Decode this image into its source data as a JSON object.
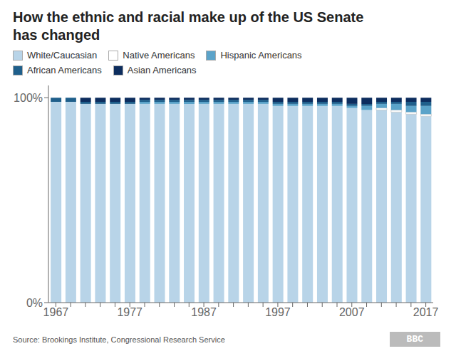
{
  "chart_data": {
    "type": "bar",
    "title": "How the ethnic and racial make up of the US Senate\nhas changed",
    "categories": [
      "1967",
      null,
      null,
      null,
      null,
      "1977",
      null,
      null,
      null,
      null,
      "1987",
      null,
      null,
      null,
      null,
      "1997",
      null,
      null,
      null,
      null,
      "2007",
      null,
      null,
      null,
      null,
      "2017"
    ],
    "series": [
      {
        "name": "White/Caucasian",
        "color": "#b8d4e8",
        "values": [
          98,
          98,
          97,
          97,
          97,
          97,
          97,
          97,
          97,
          97,
          97,
          97,
          97,
          97,
          97,
          96,
          96,
          96,
          96,
          96,
          95,
          94,
          94,
          93,
          92,
          91
        ]
      },
      {
        "name": "Native Americans",
        "color": "#ffffff",
        "values": [
          0,
          0,
          0,
          0,
          0,
          0,
          0,
          0,
          0,
          0,
          0,
          0,
          0,
          0,
          0,
          0,
          0,
          0,
          0,
          0,
          0,
          0,
          1,
          1,
          1,
          1
        ]
      },
      {
        "name": "Hispanic Americans",
        "color": "#5ba3c9",
        "values": [
          0,
          0,
          0,
          0,
          0,
          0,
          1,
          1,
          1,
          1,
          1,
          1,
          1,
          1,
          1,
          1,
          1,
          1,
          1,
          1,
          1,
          2,
          2,
          3,
          3,
          4
        ]
      },
      {
        "name": "African Americans",
        "color": "#1f5f8b",
        "values": [
          2,
          2,
          1,
          1,
          1,
          1,
          1,
          1,
          1,
          1,
          1,
          1,
          1,
          1,
          1,
          1,
          1,
          1,
          1,
          1,
          1,
          1,
          1,
          1,
          2,
          2
        ]
      },
      {
        "name": "Asian Americans",
        "color": "#0d2d5e",
        "values": [
          0,
          0,
          2,
          2,
          2,
          2,
          1,
          1,
          1,
          1,
          1,
          1,
          1,
          1,
          1,
          2,
          2,
          2,
          2,
          2,
          3,
          3,
          2,
          2,
          2,
          2
        ]
      }
    ],
    "stacked": true,
    "ylim": [
      0,
      106
    ],
    "yticks": [
      {
        "value": 0,
        "label": "0%"
      },
      {
        "value": 100,
        "label": "100%"
      }
    ],
    "grid": false,
    "legend": "upper left",
    "annotations": [
      "Source: Brookings Institute, Congressional Research Service",
      "BBC"
    ]
  }
}
